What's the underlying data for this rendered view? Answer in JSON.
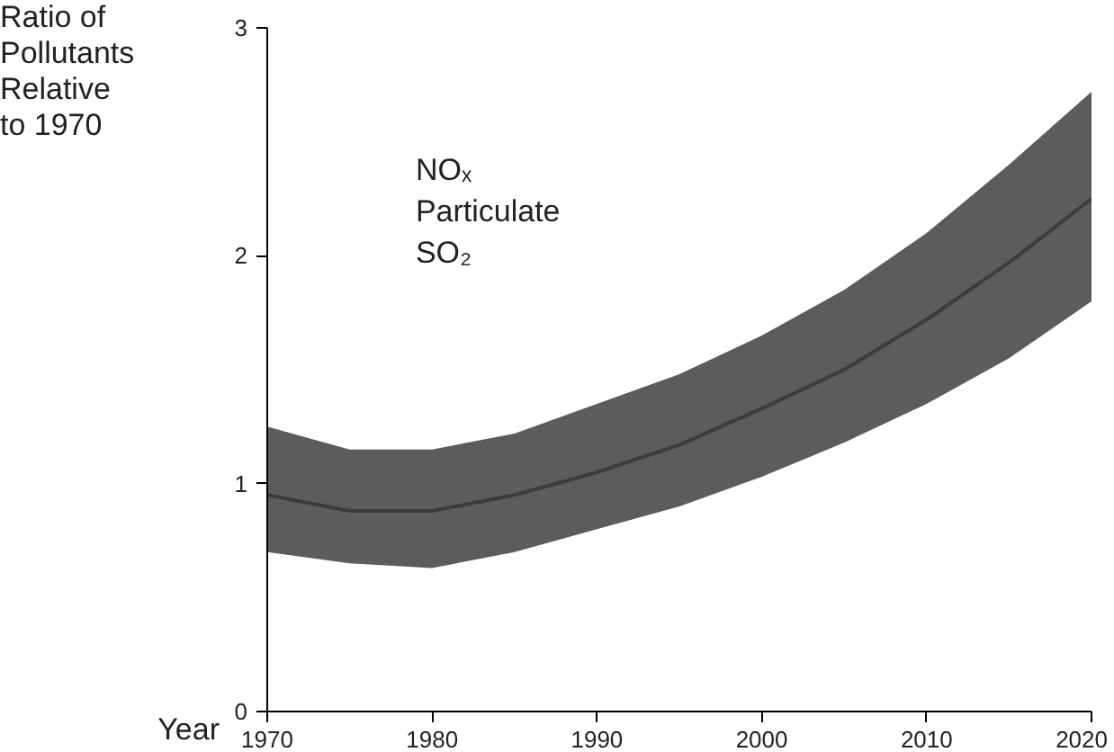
{
  "chart_data": {
    "type": "line",
    "ylabel": "Ratio of\nPollutants\nRelative\nto 1970",
    "xlabel": "Year",
    "x": [
      1970,
      1975,
      1980,
      1985,
      1990,
      1995,
      2000,
      2005,
      2010,
      2015,
      2020
    ],
    "series": [
      {
        "name": "NOₓ\nParticulate\nSO₂",
        "color": "#262626",
        "values": [
          0.95,
          0.88,
          0.88,
          0.95,
          1.05,
          1.17,
          1.33,
          1.5,
          1.72,
          1.97,
          2.25
        ],
        "lower": [
          0.7,
          0.65,
          0.63,
          0.7,
          0.8,
          0.9,
          1.03,
          1.18,
          1.35,
          1.55,
          1.8
        ],
        "upper": [
          1.25,
          1.15,
          1.15,
          1.22,
          1.35,
          1.48,
          1.65,
          1.85,
          2.1,
          2.4,
          2.72
        ]
      }
    ],
    "xlim": [
      1970,
      2020
    ],
    "ylim": [
      0,
      3
    ],
    "xticks": [
      1970,
      1980,
      1990,
      2000,
      2010,
      2020
    ],
    "yticks": [
      0,
      1,
      2,
      3
    ],
    "grid": false
  }
}
